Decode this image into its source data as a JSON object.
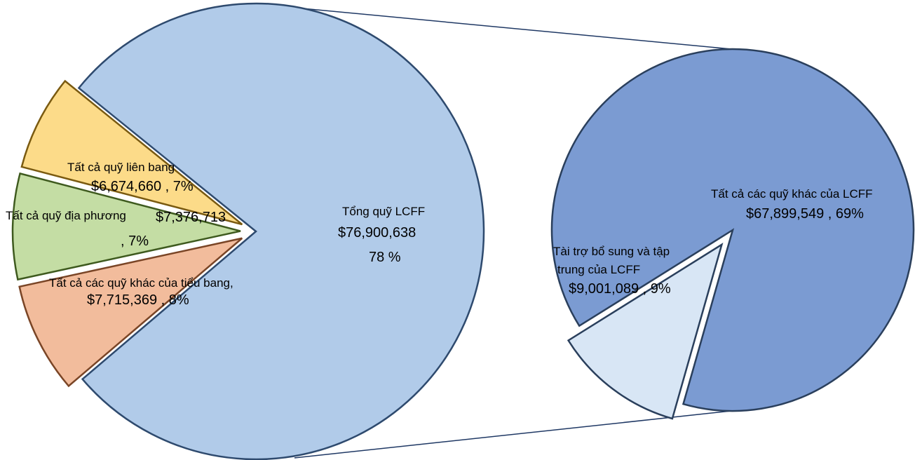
{
  "chart_data": [
    {
      "type": "pie",
      "title": "",
      "slices": [
        {
          "label": "Tổng quỹ LCFF",
          "value": 76900638,
          "value_text": "$76,900,638",
          "pct_text": "78 %",
          "color": "#B1CBE9"
        },
        {
          "label": "Tất cả các quỹ khác của tiểu bang,",
          "value": 7715369,
          "value_text": "$7,715,369 , 8%",
          "color": "#F2BC9C"
        },
        {
          "label": "Tất cả quỹ địa phương",
          "value": 7376713,
          "value_text": "$7,376,713",
          "value_text_2": ", 7%",
          "color": "#C4DDA4"
        },
        {
          "label": "Tất cả quỹ liên bang",
          "value": 6674660,
          "value_text": "$6,674,660 , 7%",
          "color": "#FCDB89"
        }
      ]
    },
    {
      "type": "pie",
      "title": "",
      "slices": [
        {
          "label": "Tất cả các quỹ khác của LCFF",
          "value": 67899549,
          "value_text": "$67,899,549 , 69%",
          "color": "#7B9BD2"
        },
        {
          "label_line1": "Tài trợ bổ sung và tập",
          "label_line2": "trung của LCFF",
          "value": 9001089,
          "value_text": "$9,001,089 , 9%",
          "color": "#D8E6F5"
        }
      ]
    }
  ]
}
